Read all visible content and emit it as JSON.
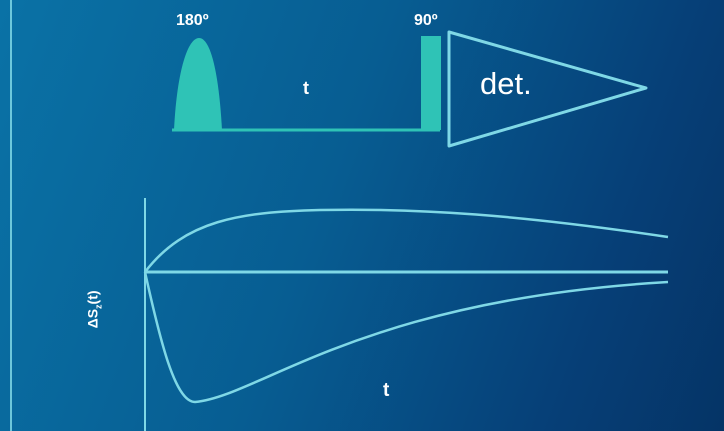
{
  "colors": {
    "background_light": "#0a72a6",
    "background_dark": "#053466",
    "pulse_fill": "#2fc3b6",
    "line": "#7fd8e6"
  },
  "pulse_sequence": {
    "pulse1_label": "180º",
    "delay_label": "t",
    "pulse2_label": "90º",
    "detection_label": "det."
  },
  "plot": {
    "y_label_main": "ΔS",
    "y_label_sub": "z",
    "y_label_arg": "(t)",
    "x_label": "t"
  }
}
